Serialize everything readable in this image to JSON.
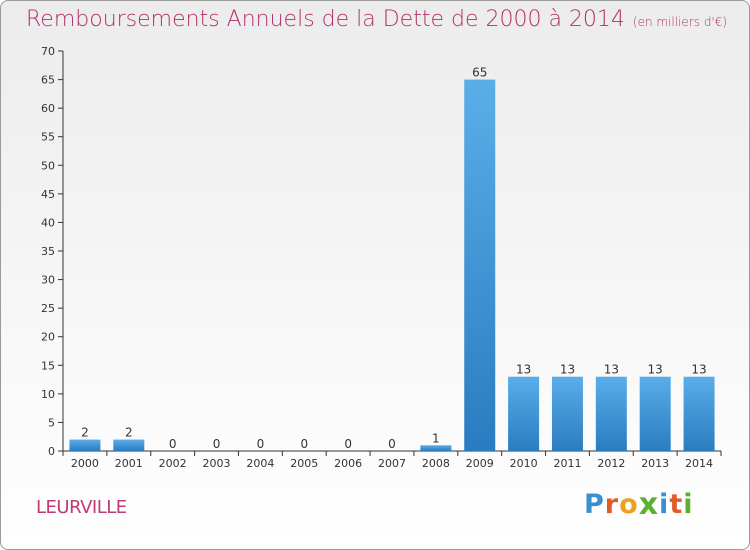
{
  "chart_data": {
    "type": "bar",
    "title": "Remboursements Annuels de la Dette de 2000 à 2014",
    "subtitle": "(en milliers d'€)",
    "categories": [
      "2000",
      "2001",
      "2002",
      "2003",
      "2004",
      "2005",
      "2006",
      "2007",
      "2008",
      "2009",
      "2010",
      "2011",
      "2012",
      "2013",
      "2014"
    ],
    "values": [
      2,
      2,
      0,
      0,
      0,
      0,
      0,
      0,
      1,
      65,
      13,
      13,
      13,
      13,
      13
    ],
    "ylim": [
      0,
      70
    ],
    "yticks": [
      0,
      5,
      10,
      15,
      20,
      25,
      30,
      35,
      40,
      45,
      50,
      55,
      60,
      65,
      70
    ],
    "grid": false,
    "bar_color": "#3f96d8"
  },
  "footer": {
    "town": "LEURVILLE",
    "logo_letters": [
      "P",
      "r",
      "o",
      "x",
      "i",
      "t",
      "i"
    ],
    "logo_colors": [
      "#3a8fd0",
      "#e05a2a",
      "#f0a020",
      "#5ab030",
      "#3a8fd0",
      "#e05a2a",
      "#5ab030"
    ]
  }
}
